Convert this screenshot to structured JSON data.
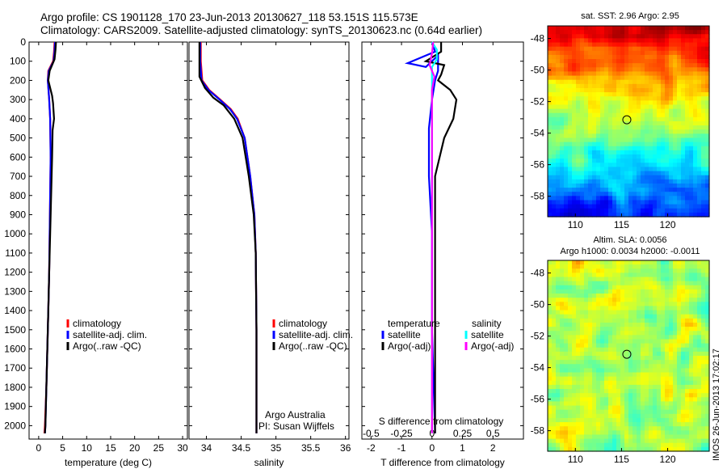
{
  "header": {
    "line1": "Argo profile: CS 1901128_170 23-Jun-2013 20130627_118 53.151S 115.573E",
    "line2": "Climatology: CARS2009. Satellite-adjusted climatology: synTS_20130623.nc (0.64d earlier)"
  },
  "colors": {
    "climatology": "#ff0000",
    "satellite": "#0000ff",
    "argo": "#000000",
    "satellite_salinity": "#00ffff",
    "argo_salinity": "#ff00ff"
  },
  "chart_data": [
    {
      "type": "line",
      "id": "temperature",
      "xlabel": "temperature (deg C)",
      "xlim": [
        -2,
        31
      ],
      "ylim": [
        0,
        2070
      ],
      "y_reversed": true,
      "xticks": [
        0,
        5,
        10,
        15,
        20,
        25,
        30
      ],
      "yticks": [
        0,
        100,
        200,
        300,
        400,
        500,
        600,
        700,
        800,
        900,
        1000,
        1100,
        1200,
        1300,
        1400,
        1500,
        1600,
        1700,
        1800,
        1900,
        2000
      ],
      "legend": [
        "climatology",
        "satellite-adj. clim.",
        "Argo(..raw -QC)"
      ],
      "series": [
        {
          "name": "climatology",
          "color": "#ff0000",
          "points": [
            [
              3.3,
              0
            ],
            [
              3.2,
              50
            ],
            [
              3.0,
              100
            ],
            [
              2.0,
              150
            ],
            [
              1.9,
              200
            ],
            [
              2.2,
              300
            ],
            [
              2.4,
              400
            ],
            [
              2.5,
              600
            ],
            [
              2.4,
              800
            ],
            [
              2.3,
              1000
            ],
            [
              2.2,
              1200
            ],
            [
              2.0,
              1400
            ],
            [
              1.8,
              1600
            ],
            [
              1.6,
              1800
            ],
            [
              1.3,
              2000
            ],
            [
              1.2,
              2040
            ]
          ]
        },
        {
          "name": "satellite-adj. clim.",
          "color": "#0000ff",
          "points": [
            [
              3.4,
              0
            ],
            [
              3.3,
              50
            ],
            [
              3.1,
              100
            ],
            [
              2.1,
              150
            ],
            [
              1.9,
              200
            ],
            [
              2.2,
              300
            ],
            [
              2.4,
              400
            ],
            [
              2.5,
              600
            ],
            [
              2.4,
              800
            ],
            [
              2.3,
              1000
            ],
            [
              2.2,
              1200
            ],
            [
              2.0,
              1400
            ],
            [
              1.8,
              1600
            ],
            [
              1.6,
              1800
            ],
            [
              1.4,
              2000
            ],
            [
              1.3,
              2040
            ]
          ]
        },
        {
          "name": "Argo(..raw -QC)",
          "color": "#000000",
          "points": [
            [
              3.6,
              0
            ],
            [
              3.5,
              40
            ],
            [
              3.3,
              90
            ],
            [
              2.3,
              150
            ],
            [
              2.0,
              200
            ],
            [
              2.8,
              280
            ],
            [
              3.0,
              320
            ],
            [
              3.2,
              400
            ],
            [
              2.9,
              460
            ],
            [
              2.8,
              600
            ],
            [
              2.6,
              800
            ],
            [
              2.4,
              1000
            ],
            [
              2.2,
              1200
            ],
            [
              2.0,
              1400
            ],
            [
              1.8,
              1600
            ],
            [
              1.6,
              1800
            ],
            [
              1.4,
              2000
            ],
            [
              1.3,
              2040
            ]
          ]
        }
      ]
    },
    {
      "type": "line",
      "id": "salinity",
      "xlabel": "salinity",
      "xlim": [
        33.75,
        36.05
      ],
      "ylim": [
        0,
        2070
      ],
      "y_reversed": true,
      "xticks": [
        34,
        34.5,
        35,
        35.5,
        36
      ],
      "legend": [
        "climatology",
        "satellite-adj. clim.",
        "Argo(..raw -QC)"
      ],
      "annotations": [
        "Argo Australia",
        "PI: Susan Wijffels"
      ],
      "series": [
        {
          "name": "climatology",
          "color": "#ff0000",
          "points": [
            [
              33.92,
              0
            ],
            [
              33.92,
              100
            ],
            [
              33.94,
              200
            ],
            [
              34.04,
              250
            ],
            [
              34.2,
              300
            ],
            [
              34.35,
              350
            ],
            [
              34.45,
              400
            ],
            [
              34.55,
              500
            ],
            [
              34.63,
              700
            ],
            [
              34.69,
              900
            ],
            [
              34.71,
              1100
            ],
            [
              34.72,
              1500
            ],
            [
              34.72,
              2040
            ]
          ]
        },
        {
          "name": "satellite-adj. clim.",
          "color": "#0000ff",
          "points": [
            [
              33.91,
              0
            ],
            [
              33.91,
              100
            ],
            [
              33.93,
              200
            ],
            [
              34.03,
              250
            ],
            [
              34.19,
              300
            ],
            [
              34.34,
              350
            ],
            [
              34.44,
              400
            ],
            [
              34.55,
              500
            ],
            [
              34.63,
              700
            ],
            [
              34.69,
              900
            ],
            [
              34.71,
              1100
            ],
            [
              34.72,
              1500
            ],
            [
              34.72,
              2040
            ]
          ]
        },
        {
          "name": "Argo(..raw -QC)",
          "color": "#000000",
          "points": [
            [
              33.9,
              0
            ],
            [
              33.9,
              100
            ],
            [
              33.9,
              180
            ],
            [
              33.98,
              240
            ],
            [
              34.1,
              290
            ],
            [
              34.25,
              330
            ],
            [
              34.4,
              400
            ],
            [
              34.52,
              500
            ],
            [
              34.61,
              700
            ],
            [
              34.68,
              900
            ],
            [
              34.71,
              1100
            ],
            [
              34.72,
              1500
            ],
            [
              34.72,
              2040
            ]
          ]
        }
      ]
    },
    {
      "type": "line",
      "id": "difference",
      "xlabel": "T difference from climatology",
      "x2label": "S difference from climatology",
      "xlim": [
        -2.3,
        3
      ],
      "x2lim": [
        -0.575,
        0.75
      ],
      "ylim": [
        0,
        2070
      ],
      "y_reversed": true,
      "xticks": [
        -2,
        -1,
        0,
        1,
        2
      ],
      "x2ticks": [
        "-0.5",
        "-0.25",
        "0",
        "0.25",
        "0.5"
      ],
      "legend_temperature_title": "temperature",
      "legend_salinity_title": "salinity",
      "legend_temperature": [
        "satellite",
        "Argo(-adj)"
      ],
      "legend_salinity": [
        "satellite",
        "Argo(-adj)"
      ],
      "series": [
        {
          "name": "satellite",
          "group": "temperature",
          "color": "#0000ff",
          "points": [
            [
              0.0,
              0
            ],
            [
              0.1,
              50
            ],
            [
              -0.8,
              110
            ],
            [
              -0.2,
              130
            ],
            [
              0.2,
              70
            ],
            [
              0.2,
              150
            ],
            [
              0.1,
              200
            ],
            [
              0.0,
              300
            ],
            [
              -0.1,
              450
            ],
            [
              -0.1,
              700
            ],
            [
              0.0,
              1000
            ],
            [
              0.0,
              1500
            ],
            [
              0.1,
              2040
            ]
          ]
        },
        {
          "name": "Argo(-adj)",
          "group": "temperature",
          "color": "#000000",
          "points": [
            [
              0.3,
              0
            ],
            [
              0.3,
              50
            ],
            [
              -0.2,
              100
            ],
            [
              0.4,
              120
            ],
            [
              0.3,
              170
            ],
            [
              0.2,
              200
            ],
            [
              0.6,
              250
            ],
            [
              0.8,
              300
            ],
            [
              0.7,
              400
            ],
            [
              0.4,
              500
            ],
            [
              0.1,
              700
            ],
            [
              0.1,
              1000
            ],
            [
              0.1,
              1500
            ],
            [
              0.1,
              2040
            ]
          ]
        },
        {
          "name": "satellite",
          "group": "salinity",
          "color": "#00ffff",
          "points": [
            [
              0.0,
              0
            ],
            [
              0.04,
              40
            ],
            [
              0.04,
              90
            ],
            [
              0.0,
              130
            ],
            [
              0.0,
              200
            ],
            [
              0.0,
              400
            ],
            [
              0.0,
              700
            ],
            [
              0.0,
              1000
            ],
            [
              0.0,
              1500
            ],
            [
              0.0,
              2040
            ]
          ]
        },
        {
          "name": "Argo(-adj)",
          "group": "salinity",
          "color": "#ff00ff",
          "points": [
            [
              0.01,
              0
            ],
            [
              0.0,
              60
            ],
            [
              -0.02,
              120
            ],
            [
              0.02,
              180
            ],
            [
              0.0,
              250
            ],
            [
              0.0,
              500
            ],
            [
              0.0,
              1000
            ],
            [
              0.0,
              1500
            ],
            [
              0.0,
              2040
            ]
          ]
        }
      ]
    },
    {
      "type": "heatmap",
      "id": "sst-map",
      "title": "sat. SST: 2.96 Argo: 2.95",
      "xlim": [
        107,
        124.5
      ],
      "ylim": [
        -59.3,
        -47.2
      ],
      "xticks": [
        110,
        115,
        120
      ],
      "yticks": [
        -48,
        -50,
        -52,
        -54,
        -56,
        -58
      ],
      "marker": {
        "lon": 115.573,
        "lat": -53.151
      }
    },
    {
      "type": "heatmap",
      "id": "sla-map",
      "title": "Altim. SLA: 0.0056",
      "title2": "Argo h1000: 0.0034 h2000: -0.0011",
      "xlim": [
        107,
        124.5
      ],
      "ylim": [
        -59.3,
        -47.2
      ],
      "xticks": [
        110,
        115,
        120
      ],
      "yticks": [
        -48,
        -50,
        -52,
        -54,
        -56,
        -58
      ],
      "marker": {
        "lon": 115.573,
        "lat": -53.151
      }
    }
  ],
  "side_label": "IMOS 26-Jun-2013 17:02:17"
}
